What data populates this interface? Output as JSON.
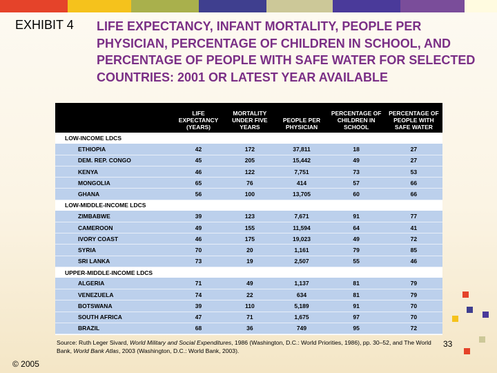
{
  "header_bar_colors": [
    "#e5432a",
    "#f5c21c",
    "#a9b04c",
    "#3f3f8f",
    "#ccc898",
    "#4a3a9a",
    "#7a4d9a",
    "#fffbe0"
  ],
  "exhibit_label": "EXHIBIT 4",
  "title": "LIFE EXPECTANCY, INFANT MORTALITY, PEOPLE PER PHYSICIAN, PERCENTAGE OF CHILDREN IN SCHOOL, AND PERCENTAGE OF PEOPLE WITH SAFE WATER FOR SELECTED COUNTRIES: 2001 OR LATEST YEAR AVAILABLE",
  "table": {
    "columns": [
      "",
      "Life expectancy (years)",
      "Mortality under five years",
      "People per physician",
      "Percentage of children in school",
      "Percentage of people with safe water"
    ],
    "groups": [
      {
        "label": "Low-Income LDCs",
        "rows": [
          [
            "Ethiopia",
            "42",
            "172",
            "37,811",
            "18",
            "27"
          ],
          [
            "Dem. Rep. Congo",
            "45",
            "205",
            "15,442",
            "49",
            "27"
          ],
          [
            "Kenya",
            "46",
            "122",
            "7,751",
            "73",
            "53"
          ],
          [
            "Mongolia",
            "65",
            "76",
            "414",
            "57",
            "66"
          ],
          [
            "Ghana",
            "56",
            "100",
            "13,705",
            "60",
            "66"
          ]
        ]
      },
      {
        "label": "Low-Middle-Income LDCs",
        "rows": [
          [
            "Zimbabwe",
            "39",
            "123",
            "7,671",
            "91",
            "77"
          ],
          [
            "Cameroon",
            "49",
            "155",
            "11,594",
            "64",
            "41"
          ],
          [
            "Ivory Coast",
            "46",
            "175",
            "19,023",
            "49",
            "72"
          ],
          [
            "Syria",
            "70",
            "20",
            "1,161",
            "79",
            "85"
          ],
          [
            "Sri Lanka",
            "73",
            "19",
            "2,507",
            "55",
            "46"
          ]
        ]
      },
      {
        "label": "Upper-Middle-Income LDCs",
        "rows": [
          [
            "Algeria",
            "71",
            "49",
            "1,137",
            "81",
            "79"
          ],
          [
            "Venezuela",
            "74",
            "22",
            "634",
            "81",
            "79"
          ],
          [
            "Botswana",
            "39",
            "110",
            "5,189",
            "91",
            "70"
          ],
          [
            "South Africa",
            "47",
            "71",
            "1,675",
            "97",
            "70"
          ],
          [
            "Brazil",
            "68",
            "36",
            "749",
            "95",
            "72"
          ]
        ]
      }
    ]
  },
  "source": {
    "prefix": "Source: Ruth Leger Sivard, ",
    "work1": "World Military and Social Expenditures",
    "middle": ", 1986 (Washington, D.C.: World Priorities, 1986), pp. 30–52, and The World Bank, ",
    "work2": "World Bank Atlas",
    "suffix": ", 2003 (Washington, D.C.: World Bank, 2003)."
  },
  "page_number": "33",
  "copyright": "© 2005",
  "decor_square_colors": [
    "#e5432a",
    "#f5c21c",
    "#3f3f8f",
    "#ccc898",
    "#4a3a9a",
    "#e5432a"
  ]
}
